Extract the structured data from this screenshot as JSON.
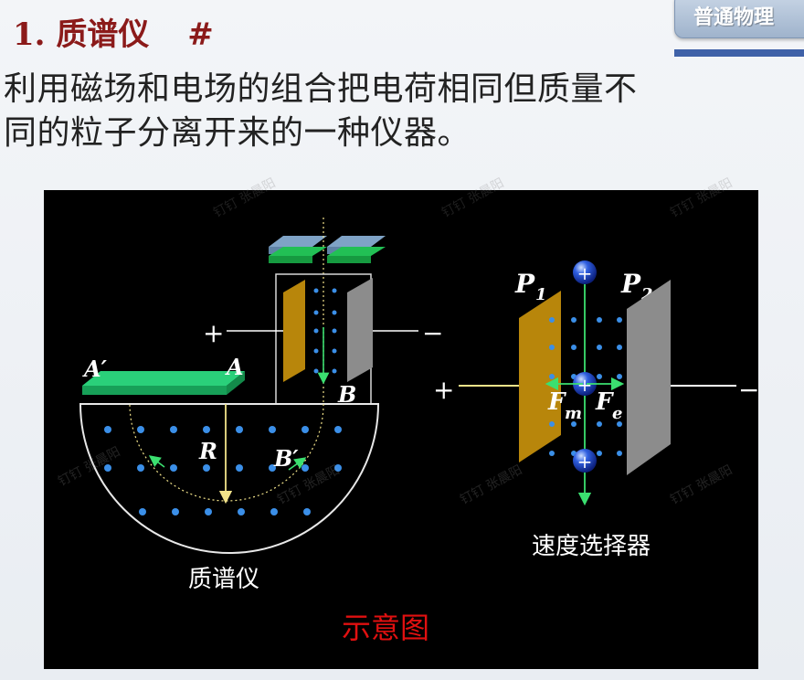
{
  "header": {
    "title": "1. 质谱仪",
    "hash": "#",
    "course_tab": "普通物理"
  },
  "intro": {
    "line1": "利用磁场和电场的组合把电荷相同但质量不",
    "line2": "同的粒子分离开来的一种仪器。"
  },
  "diagram": {
    "mass_spec": {
      "caption": "质谱仪",
      "plus": "+",
      "minus": "−",
      "label_A_prime": "A′",
      "label_A": "A",
      "label_B": "B",
      "label_R": "R",
      "label_B_prime": "B′"
    },
    "velocity_selector": {
      "caption": "速度选择器",
      "label_P1": "P",
      "label_P1_sub": "1",
      "label_P2": "P",
      "label_P2_sub": "2",
      "plus": "+",
      "minus": "−",
      "label_Fm": "F",
      "label_Fm_sub": "m",
      "label_Fe": "F",
      "label_Fe_sub": "e",
      "particle_sign": "+"
    },
    "caption_schematic": "示意图",
    "colors": {
      "background": "#000000",
      "dot": "#3b8fe8",
      "plate_gold": "#b8860b",
      "plate_gray": "#8c8c8c",
      "slab_green": "#1faa6a",
      "arrow_green": "#3be070",
      "path_yellow": "#f2e38a",
      "caption_red": "#e01010"
    }
  },
  "watermark": "钉钉 张晨阳"
}
